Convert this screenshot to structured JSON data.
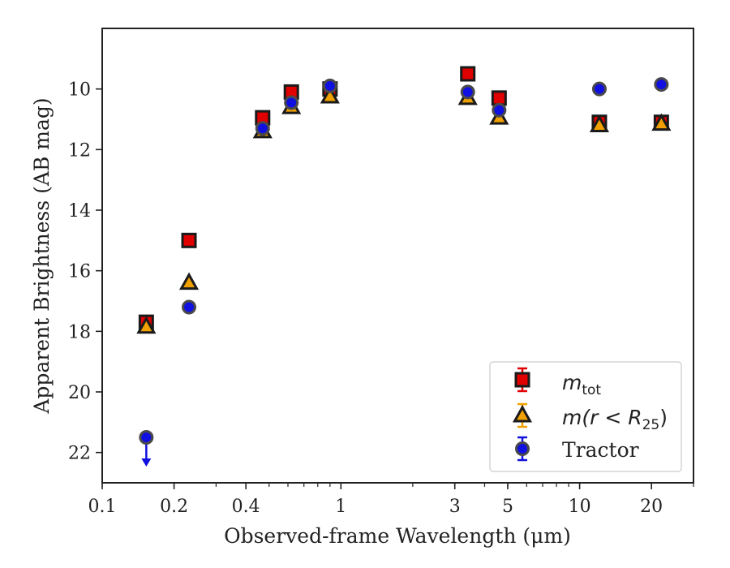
{
  "chart_data": {
    "type": "scatter",
    "title": "",
    "xlabel": "Observed-frame Wavelength (μm)",
    "ylabel": "Apparent Brightness (AB mag)",
    "x_scale": "log",
    "xlim": [
      0.1,
      30
    ],
    "ylim": [
      23,
      8
    ],
    "y_inverted": true,
    "x_ticks": [
      0.1,
      0.2,
      0.4,
      1,
      3,
      5,
      10,
      20
    ],
    "x_tick_labels": [
      "0.1",
      "0.2",
      "0.4",
      "1",
      "3",
      "5",
      "10",
      "20"
    ],
    "y_ticks": [
      10,
      12,
      14,
      16,
      18,
      20,
      22
    ],
    "y_tick_labels": [
      "10",
      "12",
      "14",
      "16",
      "18",
      "20",
      "22"
    ],
    "grid": false,
    "legend_position": "lower-right",
    "series": [
      {
        "name": "m_tot",
        "legend_label": {
          "base": "m",
          "sub": "tot"
        },
        "marker": "square",
        "color": "#e00000",
        "x": [
          0.153,
          0.231,
          0.47,
          0.62,
          0.9,
          3.4,
          4.6,
          12.1,
          22.0
        ],
        "y": [
          17.7,
          15.0,
          10.95,
          10.1,
          10.0,
          9.5,
          10.3,
          11.1,
          11.1
        ]
      },
      {
        "name": "m(r<R25)",
        "legend_label": {
          "base": "m(r < R",
          "sub": "25",
          "close": ")"
        },
        "marker": "triangle",
        "color": "#f0a000",
        "x": [
          0.153,
          0.231,
          0.47,
          0.62,
          0.9,
          3.4,
          4.6,
          12.1,
          22.0
        ],
        "y": [
          17.85,
          16.4,
          11.4,
          10.6,
          10.25,
          10.3,
          10.95,
          11.2,
          11.15
        ]
      },
      {
        "name": "Tractor",
        "legend_label": {
          "text": "Tractor"
        },
        "marker": "circle",
        "color": "#1010e0",
        "x": [
          0.153,
          0.231,
          0.47,
          0.62,
          0.9,
          3.4,
          4.6,
          12.1,
          22.0
        ],
        "y": [
          21.5,
          17.2,
          11.3,
          10.45,
          9.9,
          10.1,
          10.7,
          10.0,
          9.85
        ],
        "upper_limit": [
          true,
          false,
          false,
          false,
          false,
          false,
          false,
          false,
          false
        ]
      }
    ]
  }
}
